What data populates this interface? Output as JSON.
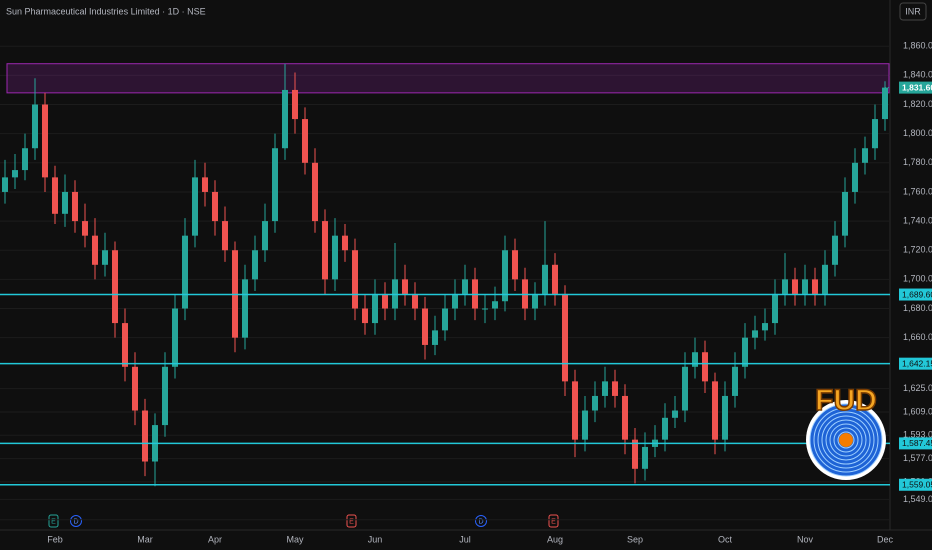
{
  "chart_data": {
    "type": "candlestick",
    "title": "Sun Pharmaceutical Industries Limited · 1D · NSE",
    "currency": "INR",
    "categories": [
      null,
      null,
      null,
      null,
      null,
      "Feb",
      null,
      null,
      null,
      null,
      null,
      null,
      null,
      null,
      "Mar",
      null,
      null,
      null,
      null,
      null,
      null,
      "Apr",
      null,
      null,
      null,
      null,
      null,
      null,
      null,
      "May",
      null,
      null,
      null,
      null,
      null,
      null,
      null,
      "Jun",
      null,
      null,
      null,
      null,
      null,
      null,
      null,
      null,
      "Jul",
      null,
      null,
      null,
      null,
      null,
      null,
      null,
      null,
      "Aug",
      null,
      null,
      null,
      null,
      null,
      null,
      null,
      "Sep",
      null,
      null,
      null,
      null,
      null,
      null,
      null,
      null,
      "Oct",
      null,
      null,
      null,
      null,
      null,
      null,
      null,
      "Nov",
      null,
      null,
      null,
      null,
      null,
      null,
      null,
      "Dec"
    ],
    "open": [
      1760,
      1770,
      1775,
      1790,
      1820,
      1770,
      1745,
      1760,
      1740,
      1730,
      1710,
      1720,
      1670,
      1640,
      1610,
      1575,
      1600,
      1640,
      1680,
      1730,
      1770,
      1760,
      1740,
      1720,
      1660,
      1700,
      1720,
      1740,
      1790,
      1830,
      1810,
      1780,
      1740,
      1700,
      1730,
      1720,
      1680,
      1670,
      1690,
      1680,
      1700,
      1690,
      1680,
      1655,
      1665,
      1680,
      1690,
      1700,
      1680,
      1680,
      1685,
      1720,
      1700,
      1680,
      1690,
      1710,
      1690,
      1630,
      1590,
      1610,
      1620,
      1630,
      1620,
      1590,
      1570,
      1585,
      1590,
      1605,
      1610,
      1640,
      1650,
      1630,
      1590,
      1620,
      1640,
      1660,
      1665,
      1670,
      1690,
      1700,
      1690,
      1700,
      1690,
      1710,
      1730,
      1760,
      1780,
      1790,
      1810
    ],
    "high": [
      1782,
      1786,
      1800,
      1838,
      1828,
      1778,
      1772,
      1768,
      1752,
      1742,
      1732,
      1726,
      1680,
      1650,
      1618,
      1608,
      1650,
      1690,
      1742,
      1782,
      1780,
      1768,
      1750,
      1726,
      1710,
      1730,
      1752,
      1800,
      1848,
      1842,
      1818,
      1790,
      1748,
      1742,
      1738,
      1728,
      1690,
      1700,
      1698,
      1725,
      1710,
      1698,
      1688,
      1675,
      1690,
      1700,
      1710,
      1708,
      1690,
      1695,
      1730,
      1728,
      1708,
      1698,
      1740,
      1718,
      1696,
      1638,
      1620,
      1630,
      1640,
      1638,
      1628,
      1598,
      1595,
      1600,
      1615,
      1620,
      1650,
      1660,
      1658,
      1636,
      1630,
      1650,
      1670,
      1675,
      1680,
      1700,
      1718,
      1708,
      1710,
      1708,
      1720,
      1740,
      1770,
      1790,
      1798,
      1820,
      1836
    ],
    "low": [
      1752,
      1762,
      1768,
      1782,
      1760,
      1738,
      1736,
      1732,
      1722,
      1700,
      1702,
      1660,
      1630,
      1600,
      1565,
      1558,
      1592,
      1632,
      1672,
      1722,
      1750,
      1730,
      1712,
      1650,
      1652,
      1692,
      1712,
      1732,
      1782,
      1800,
      1772,
      1732,
      1690,
      1692,
      1712,
      1672,
      1662,
      1662,
      1672,
      1672,
      1682,
      1672,
      1645,
      1648,
      1658,
      1672,
      1682,
      1672,
      1670,
      1672,
      1678,
      1692,
      1672,
      1672,
      1682,
      1682,
      1620,
      1578,
      1582,
      1602,
      1612,
      1612,
      1580,
      1560,
      1562,
      1578,
      1582,
      1598,
      1602,
      1632,
      1622,
      1580,
      1582,
      1612,
      1632,
      1652,
      1658,
      1662,
      1682,
      1682,
      1682,
      1682,
      1682,
      1702,
      1722,
      1752,
      1772,
      1782,
      1802
    ],
    "close": [
      1770,
      1775,
      1790,
      1820,
      1770,
      1745,
      1760,
      1740,
      1730,
      1710,
      1720,
      1670,
      1640,
      1610,
      1575,
      1600,
      1640,
      1680,
      1730,
      1770,
      1760,
      1740,
      1720,
      1660,
      1700,
      1720,
      1740,
      1790,
      1830,
      1810,
      1780,
      1740,
      1700,
      1730,
      1720,
      1680,
      1670,
      1690,
      1680,
      1700,
      1690,
      1680,
      1655,
      1665,
      1680,
      1690,
      1700,
      1680,
      1680,
      1685,
      1720,
      1700,
      1680,
      1690,
      1710,
      1690,
      1630,
      1590,
      1610,
      1620,
      1630,
      1620,
      1590,
      1570,
      1585,
      1590,
      1605,
      1610,
      1640,
      1650,
      1630,
      1590,
      1620,
      1640,
      1660,
      1665,
      1670,
      1690,
      1700,
      1690,
      1700,
      1690,
      1710,
      1730,
      1760,
      1780,
      1790,
      1810,
      1831.6
    ],
    "up_color": "#26a69a",
    "down_color": "#ef5350",
    "ylim": [
      1528,
      1878
    ],
    "yticks": [
      {
        "value": 1860,
        "label": "1,860.00"
      },
      {
        "value": 1840,
        "label": "1,840.00"
      },
      {
        "value": 1820,
        "label": "1,820.00"
      },
      {
        "value": 1800,
        "label": "1,800.00"
      },
      {
        "value": 1780,
        "label": "1,780.00"
      },
      {
        "value": 1760,
        "label": "1,760.00"
      },
      {
        "value": 1740,
        "label": "1,740.00"
      },
      {
        "value": 1720,
        "label": "1,720.00"
      },
      {
        "value": 1700,
        "label": "1,700.00"
      },
      {
        "value": 1680,
        "label": "1,680.00"
      },
      {
        "value": 1660,
        "label": "1,660.00"
      },
      {
        "value": 1625,
        "label": "1,625.00"
      },
      {
        "value": 1609,
        "label": "1,609.00"
      },
      {
        "value": 1593,
        "label": "1,593.00"
      },
      {
        "value": 1577,
        "label": "1,577.00"
      },
      {
        "value": 1561,
        "label": "1,561.00"
      },
      {
        "value": 1549,
        "label": "1,549.00"
      },
      {
        "value": 1535,
        "label": "1,535.00"
      }
    ],
    "grid": true,
    "levels": [
      {
        "value": 1689.6,
        "label": "1,689.60"
      },
      {
        "value": 1642.15,
        "label": "1,642.15"
      },
      {
        "value": 1587.45,
        "label": "1,587.45"
      },
      {
        "value": 1559.05,
        "label": "1,559.05"
      }
    ],
    "level_color": "#22c8d8",
    "last_price": {
      "value": 1831.6,
      "label": "1,831.60"
    },
    "zone": {
      "ylim": [
        1828,
        1848
      ],
      "color": "#9c27b0"
    },
    "events": [
      "E",
      "D",
      "E",
      "D",
      "E"
    ],
    "badge": "FUD"
  }
}
